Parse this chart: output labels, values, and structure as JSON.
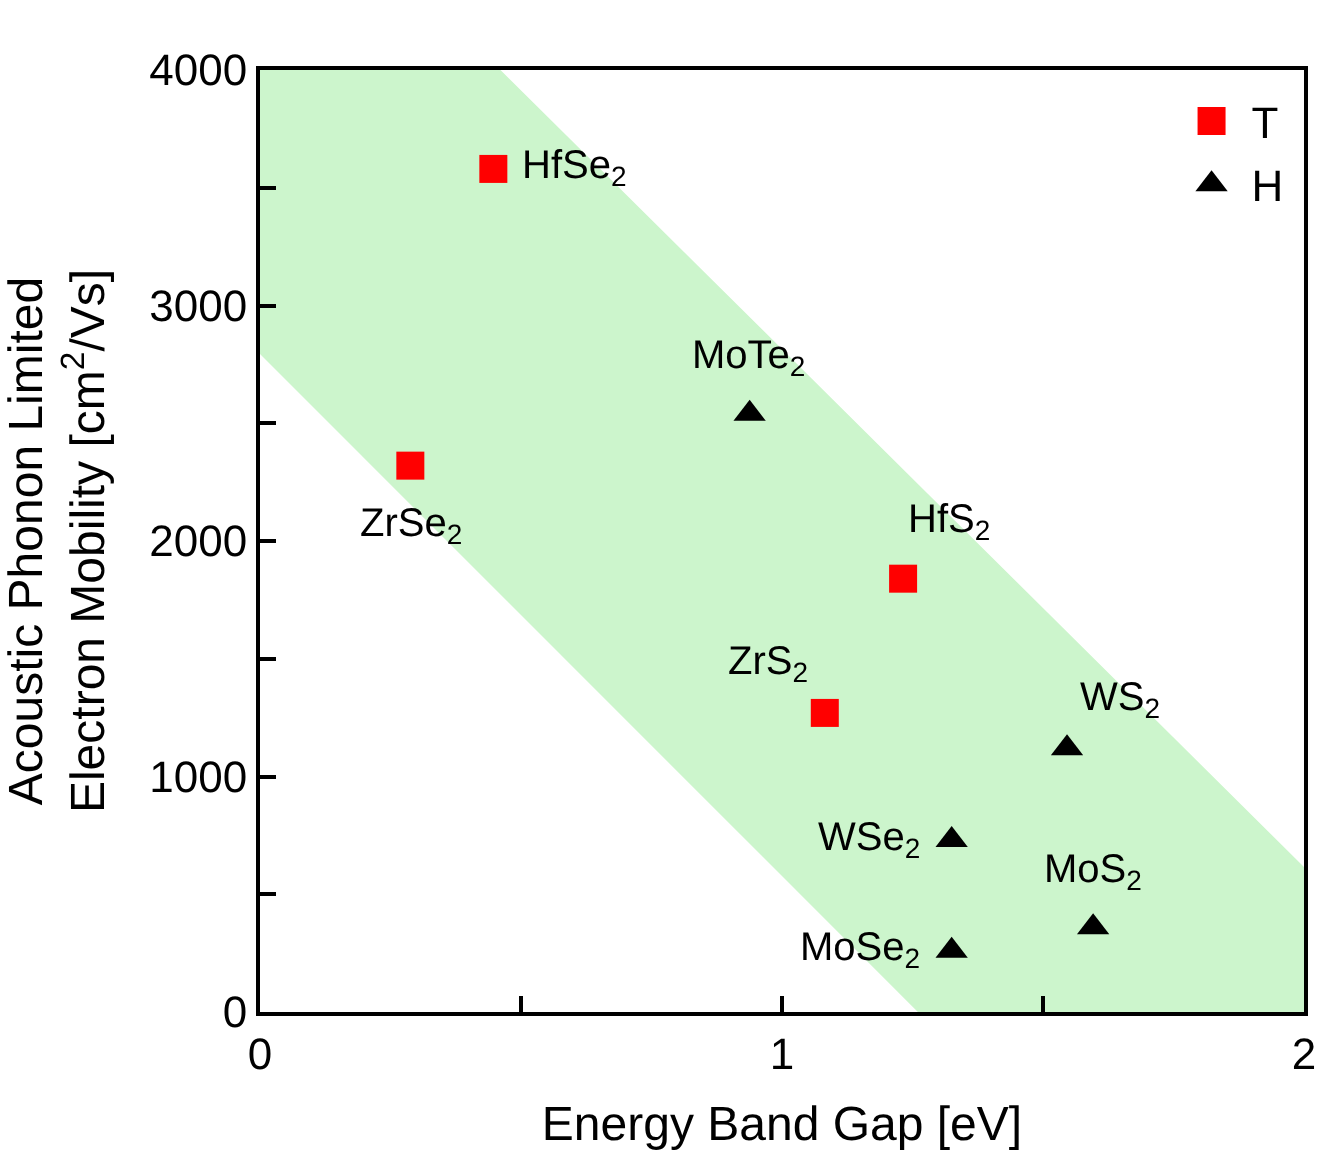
{
  "chart_data": {
    "type": "scatter",
    "xlabel": "Energy Band Gap [eV]",
    "ylabel": "Acoustic Phonon Limited\nElectron Mobility [cm$^{2}$/Vs]",
    "xlim": [
      0,
      2
    ],
    "ylim": [
      0,
      4000
    ],
    "xticks": [
      0,
      {
        "value": 0.5,
        "label": null
      },
      1,
      {
        "value": 1.5,
        "label": null
      },
      2
    ],
    "yticks": [
      0,
      {
        "value": 500,
        "label": null
      },
      1000,
      {
        "value": 1500,
        "label": null
      },
      2000,
      {
        "value": 2500,
        "label": null
      },
      3000,
      {
        "value": 3500,
        "label": null
      },
      4000
    ],
    "legend": "top right",
    "series": [
      {
        "type": "area",
        "color": "#ccf5cc",
        "x": [
          0,
          0.458,
          2,
          2,
          1.263,
          0
        ],
        "values": [
          4000,
          4000,
          610,
          0,
          0,
          2800
        ]
      },
      {
        "name": "T",
        "color": "#ff0000",
        "marker": "square",
        "x": [
          0.447,
          0.288,
          1.232,
          1.082
        ],
        "values": [
          3580,
          2320,
          1840,
          1270
        ]
      },
      {
        "name": "H",
        "color": "#000000",
        "marker": "triangle",
        "x": [
          0.938,
          1.546,
          1.325,
          1.325,
          1.596
        ],
        "values": [
          2540,
          1120,
          730,
          260,
          360
        ]
      }
    ],
    "annotations": [
      {
        "text": "HfSe$_{2}$",
        "x": 0.447,
        "y": 3580
      },
      {
        "text": "ZrSe$_{2}$",
        "x": 0.288,
        "y": 2320
      },
      {
        "text": "HfS$_{2}$",
        "x": 1.232,
        "y": 1840
      },
      {
        "text": "ZrS$_{2}$",
        "x": 1.082,
        "y": 1270
      },
      {
        "text": "MoTe$_{2}$",
        "x": 0.938,
        "y": 2540
      },
      {
        "text": "WS$_{2}$",
        "x": 1.546,
        "y": 1120
      },
      {
        "text": "WSe$_{2}$",
        "x": 1.325,
        "y": 730
      },
      {
        "text": "MoSe$_{2}$",
        "x": 1.325,
        "y": 260
      },
      {
        "text": "MoS$_{2}$",
        "x": 1.596,
        "y": 360
      }
    ]
  }
}
